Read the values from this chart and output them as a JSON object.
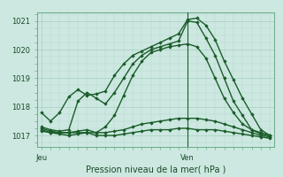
{
  "title": "Pression niveau de la mer( hPa )",
  "ylim": [
    1016.6,
    1021.3
  ],
  "background_color": "#cce8e0",
  "grid_color_major": "#9dc8bc",
  "grid_color_minor": "#b8d8d0",
  "line_color": "#1a5c2a",
  "marker_color": "#1a5c2a",
  "xtick_labels": [
    "Jeu",
    "Ven"
  ],
  "xtick_pos": [
    0,
    16
  ],
  "vline_x": 16,
  "xlim": [
    -0.5,
    25.5
  ],
  "ytick_labels": [
    "1017",
    "1018",
    "1019",
    "1020",
    "1021"
  ],
  "ytick_values": [
    1017,
    1018,
    1019,
    1020,
    1021
  ],
  "series": [
    {
      "x": [
        0,
        1,
        2,
        3,
        4,
        5,
        6,
        7,
        8,
        9,
        10,
        11,
        12,
        13,
        14,
        15,
        16,
        17,
        18,
        19,
        20,
        21,
        22,
        23,
        24,
        25
      ],
      "y": [
        1017.8,
        1017.5,
        1017.8,
        1018.35,
        1018.6,
        1018.4,
        1018.45,
        1018.55,
        1019.1,
        1019.5,
        1019.8,
        1019.95,
        1020.1,
        1020.25,
        1020.4,
        1020.55,
        1021.05,
        1021.1,
        1020.85,
        1020.35,
        1019.6,
        1018.95,
        1018.3,
        1017.75,
        1017.2,
        1017.0
      ]
    },
    {
      "x": [
        0,
        1,
        2,
        3,
        4,
        5,
        6,
        7,
        8,
        9,
        10,
        11,
        12,
        13,
        14,
        15,
        16,
        17,
        18,
        19,
        20,
        21,
        22,
        23,
        24,
        25
      ],
      "y": [
        1017.3,
        1017.2,
        1017.15,
        1017.2,
        1018.2,
        1018.5,
        1018.3,
        1018.1,
        1018.5,
        1019.0,
        1019.5,
        1019.8,
        1020.0,
        1020.1,
        1020.2,
        1020.3,
        1021.0,
        1020.95,
        1020.4,
        1019.8,
        1019.0,
        1018.2,
        1017.7,
        1017.2,
        1017.05,
        1017.0
      ]
    },
    {
      "x": [
        0,
        1,
        2,
        3,
        4,
        5,
        6,
        7,
        8,
        9,
        10,
        11,
        12,
        13,
        14,
        15,
        16,
        17,
        18,
        19,
        20,
        21,
        22,
        23,
        24,
        25
      ],
      "y": [
        1017.25,
        1017.15,
        1017.1,
        1017.1,
        1017.15,
        1017.2,
        1017.1,
        1017.3,
        1017.7,
        1018.4,
        1019.1,
        1019.6,
        1019.9,
        1020.0,
        1020.1,
        1020.15,
        1020.2,
        1020.1,
        1019.7,
        1019.0,
        1018.3,
        1017.8,
        1017.4,
        1017.2,
        1017.1,
        1017.0
      ]
    },
    {
      "x": [
        0,
        1,
        2,
        3,
        4,
        5,
        6,
        7,
        8,
        9,
        10,
        11,
        12,
        13,
        14,
        15,
        16,
        17,
        18,
        19,
        20,
        21,
        22,
        23,
        24,
        25
      ],
      "y": [
        1017.2,
        1017.1,
        1017.1,
        1017.1,
        1017.1,
        1017.1,
        1017.1,
        1017.1,
        1017.15,
        1017.2,
        1017.3,
        1017.4,
        1017.45,
        1017.5,
        1017.55,
        1017.6,
        1017.6,
        1017.6,
        1017.55,
        1017.5,
        1017.4,
        1017.3,
        1017.2,
        1017.1,
        1017.0,
        1016.95
      ]
    },
    {
      "x": [
        0,
        1,
        2,
        3,
        4,
        5,
        6,
        7,
        8,
        9,
        10,
        11,
        12,
        13,
        14,
        15,
        16,
        17,
        18,
        19,
        20,
        21,
        22,
        23,
        24,
        25
      ],
      "y": [
        1017.15,
        1017.1,
        1017.05,
        1017.0,
        1017.05,
        1017.1,
        1017.0,
        1017.0,
        1017.0,
        1017.05,
        1017.1,
        1017.15,
        1017.2,
        1017.2,
        1017.2,
        1017.25,
        1017.25,
        1017.2,
        1017.2,
        1017.2,
        1017.15,
        1017.1,
        1017.05,
        1017.0,
        1016.95,
        1016.9
      ]
    }
  ],
  "figsize": [
    3.2,
    2.0
  ],
  "dpi": 100
}
